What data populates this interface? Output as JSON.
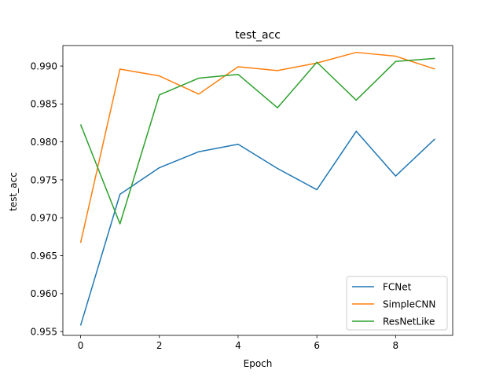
{
  "chart_data": {
    "type": "line",
    "title": "test_acc",
    "xlabel": "Epoch",
    "ylabel": "test_acc",
    "x": [
      0,
      1,
      2,
      3,
      4,
      5,
      6,
      7,
      8,
      9
    ],
    "xlim": [
      -0.45,
      9.45
    ],
    "ylim": [
      0.9545,
      0.9927
    ],
    "xticks": [
      0,
      2,
      4,
      6,
      8
    ],
    "yticks": [
      0.955,
      0.96,
      0.965,
      0.97,
      0.975,
      0.98,
      0.985,
      0.99
    ],
    "grid": false,
    "legend_position": "lower-right",
    "series": [
      {
        "name": "FCNet",
        "color": "#1f77b4",
        "values": [
          0.9558,
          0.9731,
          0.9766,
          0.9787,
          0.9797,
          0.9765,
          0.9737,
          0.9814,
          0.9755,
          0.9804
        ]
      },
      {
        "name": "SimpleCNN",
        "color": "#ff7f0e",
        "values": [
          0.9667,
          0.9896,
          0.9887,
          0.9863,
          0.9899,
          0.9894,
          0.9904,
          0.9918,
          0.9913,
          0.9896
        ]
      },
      {
        "name": "ResNetLike",
        "color": "#2ca02c",
        "values": [
          0.9823,
          0.9692,
          0.9862,
          0.9884,
          0.9889,
          0.9845,
          0.9905,
          0.9855,
          0.9906,
          0.991
        ]
      }
    ]
  }
}
